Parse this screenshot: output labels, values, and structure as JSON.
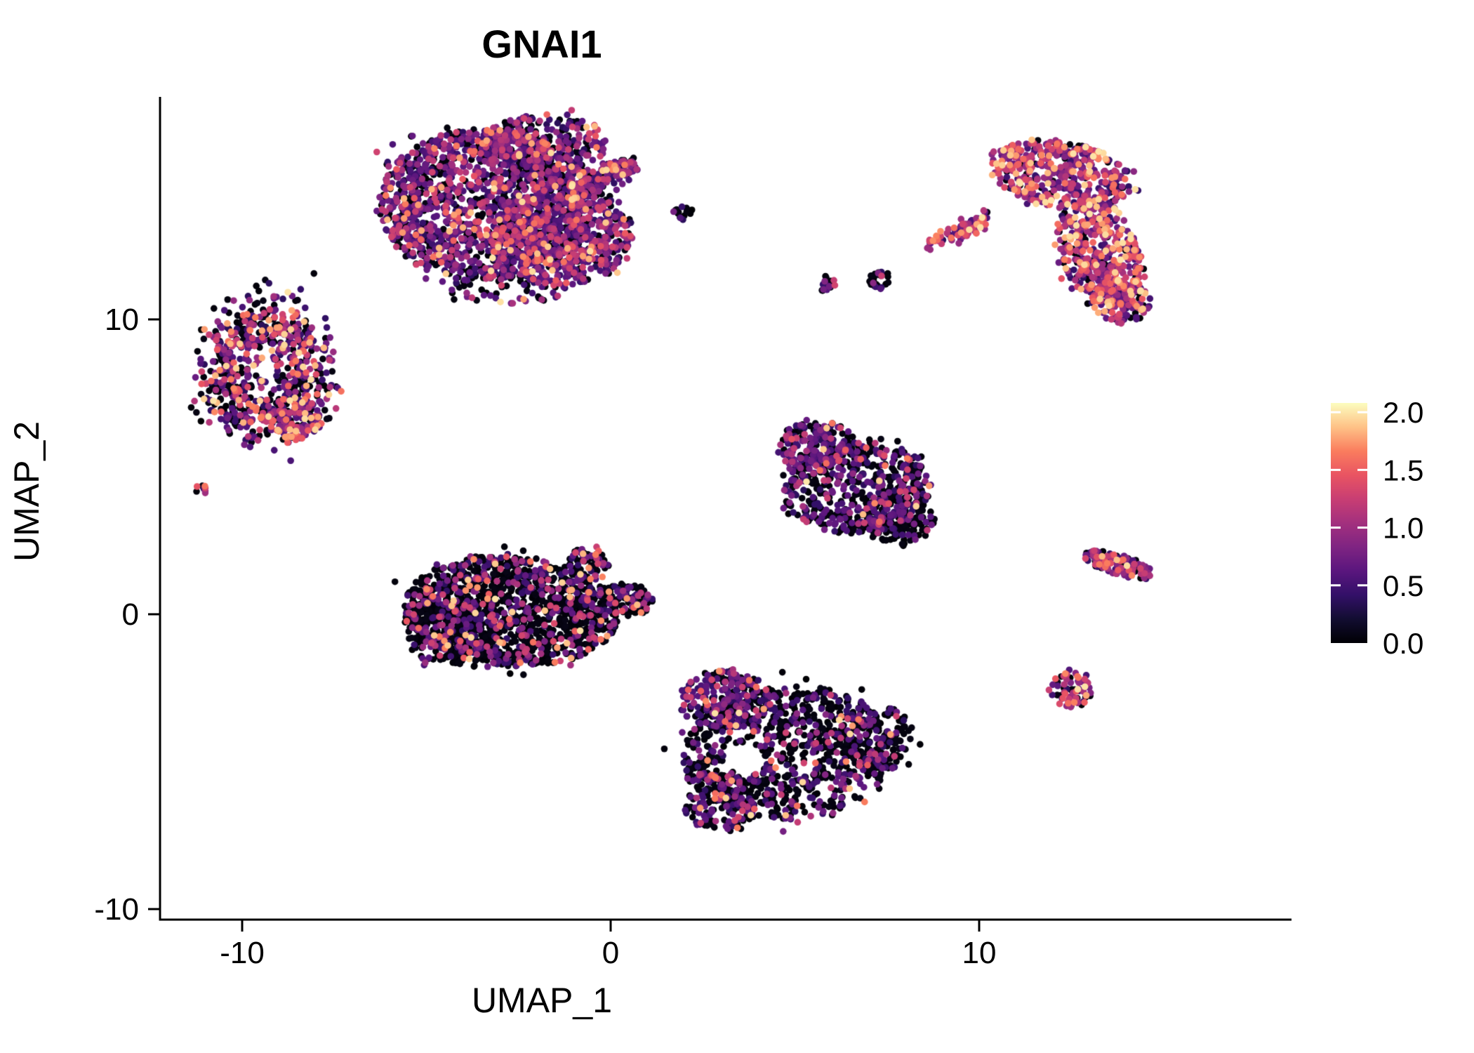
{
  "title": "GNAI1",
  "chart_data": {
    "type": "scatter",
    "title": "GNAI1",
    "xlabel": "UMAP_1",
    "ylabel": "UMAP_2",
    "xlim": [
      -12.2,
      18.5
    ],
    "ylim": [
      -10.4,
      17.5
    ],
    "x_ticks": [
      -10,
      0,
      10
    ],
    "y_ticks": [
      -10,
      0,
      10
    ],
    "grid": false,
    "legend_position": "right",
    "point_radius_px": 4.8,
    "seed": 7,
    "color_scale": {
      "name": "magma",
      "domain": [
        0,
        2.08
      ],
      "legend_ticks": [
        2.0,
        1.5,
        1.0,
        0.5,
        0.0
      ],
      "stops": [
        "#000004",
        "#120d31",
        "#331068",
        "#5a167e",
        "#7f2482",
        "#a3307e",
        "#c83e73",
        "#e95462",
        "#fa7d5e",
        "#fec287",
        "#fcfdbf"
      ]
    },
    "expression_levels": {
      "zero": [
        0.0,
        0.08
      ],
      "low": [
        0.35,
        0.78
      ],
      "mid": [
        0.8,
        1.32
      ],
      "high": [
        1.35,
        2.0
      ]
    },
    "clusters": [
      {
        "name": "top-center-main",
        "shape": "disk",
        "cx": -3.4,
        "cy": 13.9,
        "rx": 2.9,
        "ry": 2.55,
        "rot": -5,
        "n": 1500,
        "mix": {
          "zero": 0.28,
          "low": 0.42,
          "mid": 0.22,
          "high": 0.08
        }
      },
      {
        "name": "top-center-lobe-right",
        "shape": "disk",
        "cx": -1.3,
        "cy": 12.9,
        "rx": 1.9,
        "ry": 1.8,
        "rot": 0,
        "n": 650,
        "mix": {
          "zero": 0.28,
          "low": 0.42,
          "mid": 0.22,
          "high": 0.08
        }
      },
      {
        "name": "top-center-lobe-top",
        "shape": "disk",
        "cx": -1.8,
        "cy": 15.9,
        "rx": 1.7,
        "ry": 1.05,
        "rot": 0,
        "n": 280,
        "mix": {
          "zero": 0.3,
          "low": 0.42,
          "mid": 0.2,
          "high": 0.08
        }
      },
      {
        "name": "top-center-fringe",
        "shape": "disk",
        "cx": -2.8,
        "cy": 11.1,
        "rx": 1.7,
        "ry": 0.6,
        "rot": 0,
        "n": 60,
        "mix": {
          "zero": 0.5,
          "low": 0.3,
          "mid": 0.15,
          "high": 0.05
        }
      },
      {
        "name": "top-center-arm",
        "shape": "streak",
        "x1": -1.05,
        "y1": 14.25,
        "x2": 0.35,
        "y2": 15.2,
        "w": 0.22,
        "n": 120,
        "mix": {
          "zero": 0.3,
          "low": 0.4,
          "mid": 0.22,
          "high": 0.08
        }
      },
      {
        "name": "top-center-arm-head",
        "shape": "disk",
        "cx": 0.3,
        "cy": 15.15,
        "rx": 0.45,
        "ry": 0.3,
        "rot": 0,
        "n": 50,
        "mix": {
          "zero": 0.3,
          "low": 0.4,
          "mid": 0.22,
          "high": 0.08
        }
      },
      {
        "name": "top-right-upper",
        "shape": "disk",
        "cx": 12.2,
        "cy": 14.9,
        "rx": 1.95,
        "ry": 1.15,
        "rot": -12,
        "n": 430,
        "mix": {
          "zero": 0.1,
          "low": 0.25,
          "mid": 0.38,
          "high": 0.27
        }
      },
      {
        "name": "top-right-body",
        "shape": "disk",
        "cx": 13.25,
        "cy": 12.3,
        "rx": 1.05,
        "ry": 1.95,
        "rot": 14,
        "n": 430,
        "mix": {
          "zero": 0.1,
          "low": 0.25,
          "mid": 0.38,
          "high": 0.27
        }
      },
      {
        "name": "top-right-tail",
        "shape": "disk",
        "cx": 13.85,
        "cy": 10.6,
        "rx": 0.8,
        "ry": 0.75,
        "rot": 0,
        "n": 120,
        "mix": {
          "zero": 0.12,
          "low": 0.28,
          "mid": 0.38,
          "high": 0.22
        }
      },
      {
        "name": "streak-long",
        "shape": "streak",
        "x1": 8.55,
        "y1": 12.55,
        "x2": 10.3,
        "y2": 13.6,
        "w": 0.1,
        "n": 55,
        "mix": {
          "zero": 0.05,
          "low": 0.25,
          "mid": 0.5,
          "high": 0.2
        }
      },
      {
        "name": "streak-short",
        "shape": "streak",
        "x1": 9.2,
        "y1": 12.7,
        "x2": 10.05,
        "y2": 13.15,
        "w": 0.08,
        "n": 30,
        "mix": {
          "zero": 0.05,
          "low": 0.3,
          "mid": 0.45,
          "high": 0.2
        }
      },
      {
        "name": "small-blob-a",
        "shape": "disk",
        "cx": 7.3,
        "cy": 11.35,
        "rx": 0.3,
        "ry": 0.32,
        "rot": 0,
        "n": 30,
        "mix": {
          "zero": 0.6,
          "low": 0.28,
          "mid": 0.12,
          "high": 0
        }
      },
      {
        "name": "small-blob-b",
        "shape": "disk",
        "cx": 5.85,
        "cy": 11.2,
        "rx": 0.24,
        "ry": 0.26,
        "rot": 0,
        "n": 18,
        "mix": {
          "zero": 0.6,
          "low": 0.3,
          "mid": 0.1,
          "high": 0
        }
      },
      {
        "name": "small-blob-c",
        "shape": "disk",
        "cx": 2.0,
        "cy": 13.6,
        "rx": 0.3,
        "ry": 0.28,
        "rot": 0,
        "n": 14,
        "mix": {
          "zero": 0.65,
          "low": 0.25,
          "mid": 0.1,
          "high": 0
        }
      },
      {
        "name": "left-ring",
        "shape": "ring",
        "cx": -9.35,
        "cy": 8.3,
        "r0": 1.25,
        "rs": 0.42,
        "sx": 1.0,
        "sy": 1.35,
        "n": 720,
        "mix": {
          "zero": 0.38,
          "low": 0.3,
          "mid": 0.18,
          "high": 0.14
        }
      },
      {
        "name": "left-ring-lobe",
        "shape": "disk",
        "cx": -8.6,
        "cy": 6.6,
        "rx": 0.75,
        "ry": 0.75,
        "rot": 0,
        "n": 120,
        "mix": {
          "zero": 0.2,
          "low": 0.3,
          "mid": 0.25,
          "high": 0.25
        }
      },
      {
        "name": "far-left-dot",
        "shape": "disk",
        "cx": -11.1,
        "cy": 4.25,
        "rx": 0.17,
        "ry": 0.17,
        "rot": 0,
        "n": 8,
        "mix": {
          "zero": 0.2,
          "low": 0.2,
          "mid": 0.4,
          "high": 0.2
        }
      },
      {
        "name": "mid-right-main",
        "shape": "disk",
        "cx": 6.7,
        "cy": 4.3,
        "rx": 2.0,
        "ry": 1.55,
        "rot": 8,
        "n": 520,
        "mix": {
          "zero": 0.52,
          "low": 0.34,
          "mid": 0.11,
          "high": 0.03
        }
      },
      {
        "name": "mid-right-top",
        "shape": "disk",
        "cx": 5.6,
        "cy": 5.7,
        "rx": 1.05,
        "ry": 0.85,
        "rot": 0,
        "n": 180,
        "mix": {
          "zero": 0.4,
          "low": 0.4,
          "mid": 0.17,
          "high": 0.03
        }
      },
      {
        "name": "mid-right-lower",
        "shape": "disk",
        "cx": 7.8,
        "cy": 3.3,
        "rx": 1.0,
        "ry": 0.95,
        "rot": 0,
        "n": 180,
        "mix": {
          "zero": 0.65,
          "low": 0.27,
          "mid": 0.07,
          "high": 0.01
        }
      },
      {
        "name": "bottom-left-main",
        "shape": "disk",
        "cx": -2.7,
        "cy": 0.1,
        "rx": 2.9,
        "ry": 1.85,
        "rot": -6,
        "n": 1250,
        "mix": {
          "zero": 0.7,
          "low": 0.17,
          "mid": 0.09,
          "high": 0.04
        }
      },
      {
        "name": "bottom-left-west",
        "shape": "disk",
        "cx": -4.4,
        "cy": -0.4,
        "rx": 1.25,
        "ry": 1.35,
        "rot": 0,
        "n": 280,
        "mix": {
          "zero": 0.75,
          "low": 0.15,
          "mid": 0.07,
          "high": 0.03
        }
      },
      {
        "name": "bottom-left-peak",
        "shape": "disk",
        "cx": -0.6,
        "cy": 1.7,
        "rx": 0.55,
        "ry": 0.6,
        "rot": 0,
        "n": 80,
        "mix": {
          "zero": 0.6,
          "low": 0.25,
          "mid": 0.1,
          "high": 0.05
        }
      },
      {
        "name": "bottom-left-tip",
        "shape": "disk",
        "cx": 0.45,
        "cy": 0.55,
        "rx": 0.75,
        "ry": 0.5,
        "rot": -20,
        "n": 110,
        "mix": {
          "zero": 0.6,
          "low": 0.25,
          "mid": 0.1,
          "high": 0.05
        }
      },
      {
        "name": "bottom-center-main",
        "shape": "disk",
        "cx": 4.8,
        "cy": -4.7,
        "rx": 2.9,
        "ry": 2.25,
        "rot": 8,
        "n": 850,
        "mix": {
          "zero": 0.68,
          "low": 0.22,
          "mid": 0.08,
          "high": 0.02
        },
        "holes": [
          {
            "cx": 3.6,
            "cy": -4.9,
            "r": 0.55
          }
        ]
      },
      {
        "name": "bottom-center-upper-lobe",
        "shape": "disk",
        "cx": 3.1,
        "cy": -2.9,
        "rx": 1.25,
        "ry": 1.0,
        "rot": 0,
        "n": 230,
        "mix": {
          "zero": 0.35,
          "low": 0.45,
          "mid": 0.15,
          "high": 0.05
        }
      },
      {
        "name": "bottom-center-sw-lobe",
        "shape": "disk",
        "cx": 2.9,
        "cy": -6.3,
        "rx": 0.95,
        "ry": 1.05,
        "rot": 0,
        "n": 140,
        "mix": {
          "zero": 0.55,
          "low": 0.3,
          "mid": 0.1,
          "high": 0.05
        }
      },
      {
        "name": "bottom-center-east-lobe",
        "shape": "disk",
        "cx": 7.2,
        "cy": -4.2,
        "rx": 1.0,
        "ry": 1.15,
        "rot": 0,
        "n": 140,
        "mix": {
          "zero": 0.75,
          "low": 0.18,
          "mid": 0.05,
          "high": 0.02
        }
      },
      {
        "name": "right-diagonal",
        "shape": "disk",
        "cx": 13.75,
        "cy": 1.7,
        "rx": 1.05,
        "ry": 0.34,
        "rot": -22,
        "n": 130,
        "mix": {
          "zero": 0.15,
          "low": 0.33,
          "mid": 0.35,
          "high": 0.17
        }
      },
      {
        "name": "right-round",
        "shape": "disk",
        "cx": 12.5,
        "cy": -2.55,
        "rx": 0.55,
        "ry": 0.6,
        "rot": 0,
        "n": 70,
        "mix": {
          "zero": 0.25,
          "low": 0.2,
          "mid": 0.33,
          "high": 0.22
        }
      }
    ]
  }
}
